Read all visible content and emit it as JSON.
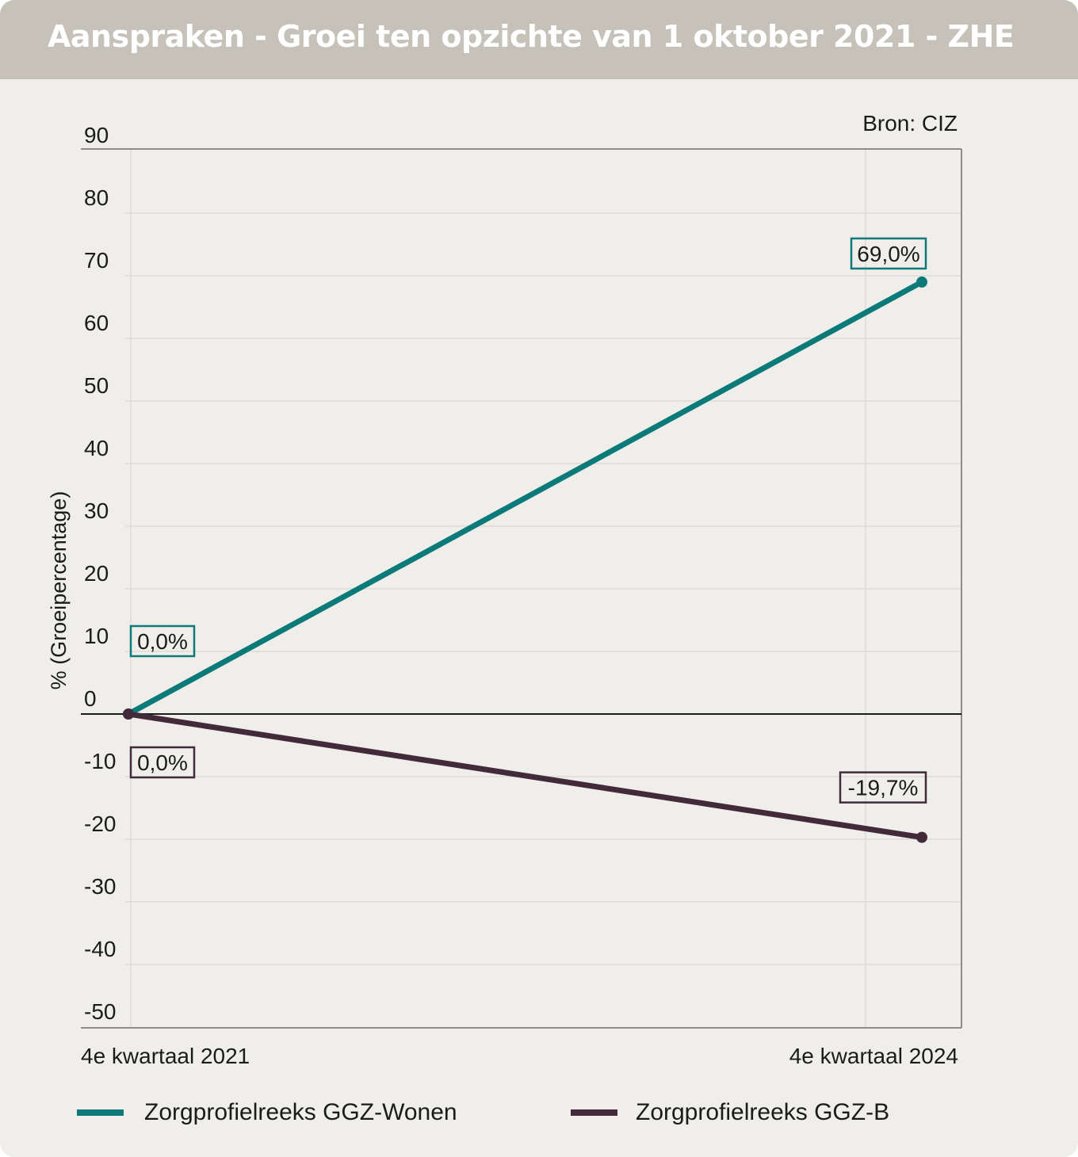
{
  "header": {
    "title": "Aanspraken - Groei ten opzichte van 1 oktober 2021 - ZHE"
  },
  "source": "Bron: CIZ",
  "colors": {
    "series_a": "#0c7a78",
    "series_b": "#432a3a",
    "background": "#efeeea",
    "header_bg": "#c6c2ba"
  },
  "chart_data": {
    "type": "line",
    "title": "Aanspraken - Groei ten opzichte van 1 oktober 2021 - ZHE",
    "ylabel": "% (Groeipercentage)",
    "xlabel": "",
    "x": [
      "4e kwartaal 2021",
      "4e kwartaal 2024"
    ],
    "ylim": [
      -50,
      90
    ],
    "yticks": [
      "90",
      "80",
      "70",
      "60",
      "50",
      "40",
      "30",
      "20",
      "10",
      "0",
      "-10",
      "-20",
      "-30",
      "-40",
      "-50"
    ],
    "grid": true,
    "legend_position": "bottom",
    "series": [
      {
        "name": "Zorgprofielreeks GGZ-Wonen",
        "values": [
          0.0,
          69.0
        ],
        "labels": [
          "0,0%",
          "69,0%"
        ],
        "color": "#0c7a78"
      },
      {
        "name": "Zorgprofielreeks GGZ-B",
        "values": [
          0.0,
          -19.7
        ],
        "labels": [
          "0,0%",
          "-19,7%"
        ],
        "color": "#432a3a"
      }
    ]
  }
}
